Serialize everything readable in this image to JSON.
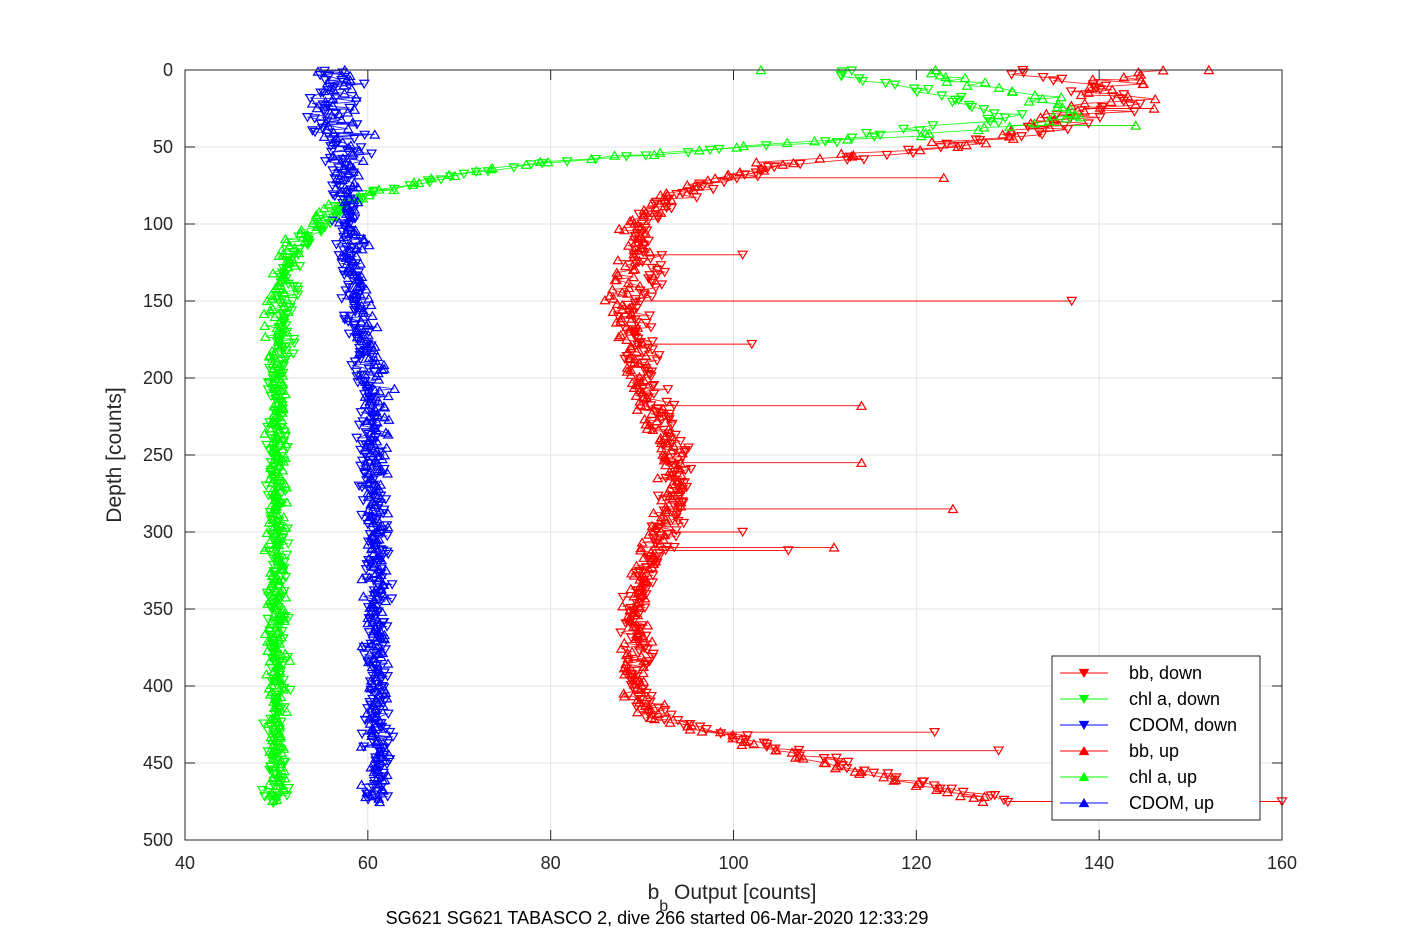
{
  "chart_data": {
    "type": "line",
    "title": "",
    "caption": "SG621 SG621 TABASCO 2, dive 266 started 06-Mar-2020 12:33:29",
    "xlabel_main": "b",
    "xlabel_sub": "b",
    "xlabel_rest": " Output [counts]",
    "ylabel": "Depth [counts]",
    "xlim": [
      40,
      160
    ],
    "ylim": [
      0,
      500
    ],
    "y_reversed": true,
    "grid": true,
    "legend_position": "bottom-right",
    "xticks": [
      "40",
      "60",
      "80",
      "100",
      "120",
      "140",
      "160"
    ],
    "yticks": [
      "0",
      "50",
      "100",
      "150",
      "200",
      "250",
      "300",
      "350",
      "400",
      "450",
      "500"
    ],
    "series": [
      {
        "name": "bb, down",
        "color": "#ff0000",
        "marker": "triangle-down",
        "profile": [
          [
            0,
            128
          ],
          [
            10,
            140
          ],
          [
            20,
            142
          ],
          [
            30,
            138
          ],
          [
            40,
            135
          ],
          [
            50,
            122
          ],
          [
            60,
            108
          ],
          [
            70,
            100
          ],
          [
            80,
            95
          ],
          [
            90,
            92
          ],
          [
            100,
            90
          ],
          [
            110,
            90
          ],
          [
            130,
            91
          ],
          [
            150,
            89
          ],
          [
            170,
            90
          ],
          [
            200,
            91
          ],
          [
            220,
            92
          ],
          [
            250,
            94
          ],
          [
            280,
            94
          ],
          [
            300,
            93
          ],
          [
            320,
            91
          ],
          [
            350,
            89
          ],
          [
            380,
            90
          ],
          [
            400,
            89
          ],
          [
            420,
            92
          ],
          [
            440,
            105
          ],
          [
            460,
            118
          ],
          [
            475,
            130
          ]
        ]
      },
      {
        "name": "chl a, down",
        "color": "#00ff00",
        "marker": "triangle-down",
        "profile": [
          [
            0,
            112
          ],
          [
            10,
            118
          ],
          [
            20,
            124
          ],
          [
            30,
            130
          ],
          [
            40,
            120
          ],
          [
            50,
            102
          ],
          [
            60,
            80
          ],
          [
            70,
            68
          ],
          [
            80,
            60
          ],
          [
            90,
            57
          ],
          [
            100,
            55
          ],
          [
            110,
            53
          ],
          [
            130,
            51
          ],
          [
            150,
            51
          ],
          [
            170,
            51
          ],
          [
            200,
            50
          ],
          [
            250,
            50
          ],
          [
            300,
            50
          ],
          [
            350,
            50
          ],
          [
            400,
            50
          ],
          [
            450,
            50
          ],
          [
            475,
            50
          ]
        ]
      },
      {
        "name": "CDOM, down",
        "color": "#0000ff",
        "marker": "triangle-down",
        "profile": [
          [
            0,
            56
          ],
          [
            50,
            57
          ],
          [
            100,
            58
          ],
          [
            150,
            58
          ],
          [
            200,
            60
          ],
          [
            250,
            60
          ],
          [
            300,
            61
          ],
          [
            350,
            61
          ],
          [
            400,
            61
          ],
          [
            450,
            61
          ],
          [
            475,
            61
          ]
        ]
      },
      {
        "name": "bb, up",
        "color": "#ff0000",
        "marker": "triangle-up",
        "profile": [
          [
            0,
            145
          ],
          [
            10,
            143
          ],
          [
            20,
            141
          ],
          [
            30,
            136
          ],
          [
            40,
            132
          ],
          [
            50,
            120
          ],
          [
            60,
            106
          ],
          [
            70,
            98
          ],
          [
            80,
            94
          ],
          [
            90,
            91
          ],
          [
            100,
            89
          ],
          [
            120,
            89
          ],
          [
            150,
            88
          ],
          [
            170,
            89
          ],
          [
            200,
            90
          ],
          [
            250,
            93
          ],
          [
            280,
            93
          ],
          [
            300,
            92
          ],
          [
            320,
            90
          ],
          [
            350,
            89
          ],
          [
            380,
            89
          ],
          [
            400,
            89
          ],
          [
            420,
            91
          ],
          [
            440,
            104
          ],
          [
            460,
            117
          ],
          [
            475,
            128
          ]
        ]
      },
      {
        "name": "chl a, up",
        "color": "#00ff00",
        "marker": "triangle-up",
        "profile": [
          [
            0,
            120
          ],
          [
            10,
            128
          ],
          [
            20,
            134
          ],
          [
            30,
            138
          ],
          [
            40,
            125
          ],
          [
            50,
            100
          ],
          [
            60,
            78
          ],
          [
            70,
            67
          ],
          [
            80,
            60
          ],
          [
            90,
            56
          ],
          [
            100,
            54
          ],
          [
            110,
            52
          ],
          [
            130,
            51
          ],
          [
            150,
            50
          ],
          [
            200,
            50
          ],
          [
            250,
            50
          ],
          [
            300,
            50
          ],
          [
            350,
            50
          ],
          [
            400,
            50
          ],
          [
            475,
            50
          ]
        ]
      },
      {
        "name": "CDOM, up",
        "color": "#0000ff",
        "marker": "triangle-up",
        "profile": [
          [
            0,
            57
          ],
          [
            50,
            58
          ],
          [
            100,
            58
          ],
          [
            150,
            59
          ],
          [
            200,
            61
          ],
          [
            250,
            61
          ],
          [
            300,
            61
          ],
          [
            350,
            61
          ],
          [
            400,
            61
          ],
          [
            475,
            61
          ]
        ]
      }
    ],
    "outliers": [
      {
        "series": 0,
        "points": [
          [
            150,
            137
          ],
          [
            178,
            102
          ],
          [
            120,
            101
          ],
          [
            430,
            122
          ],
          [
            442,
            129
          ],
          [
            475,
            160
          ],
          [
            300,
            101
          ],
          [
            312,
            106
          ]
        ]
      },
      {
        "series": 3,
        "points": [
          [
            0,
            152
          ],
          [
            70,
            123
          ],
          [
            218,
            114
          ],
          [
            255,
            114
          ],
          [
            285,
            124
          ],
          [
            310,
            111
          ],
          [
            25,
            146
          ],
          [
            36,
            144
          ]
        ]
      },
      {
        "series": 4,
        "points": [
          [
            36,
            144
          ],
          [
            0,
            103
          ],
          [
            30,
            135
          ]
        ]
      }
    ]
  }
}
